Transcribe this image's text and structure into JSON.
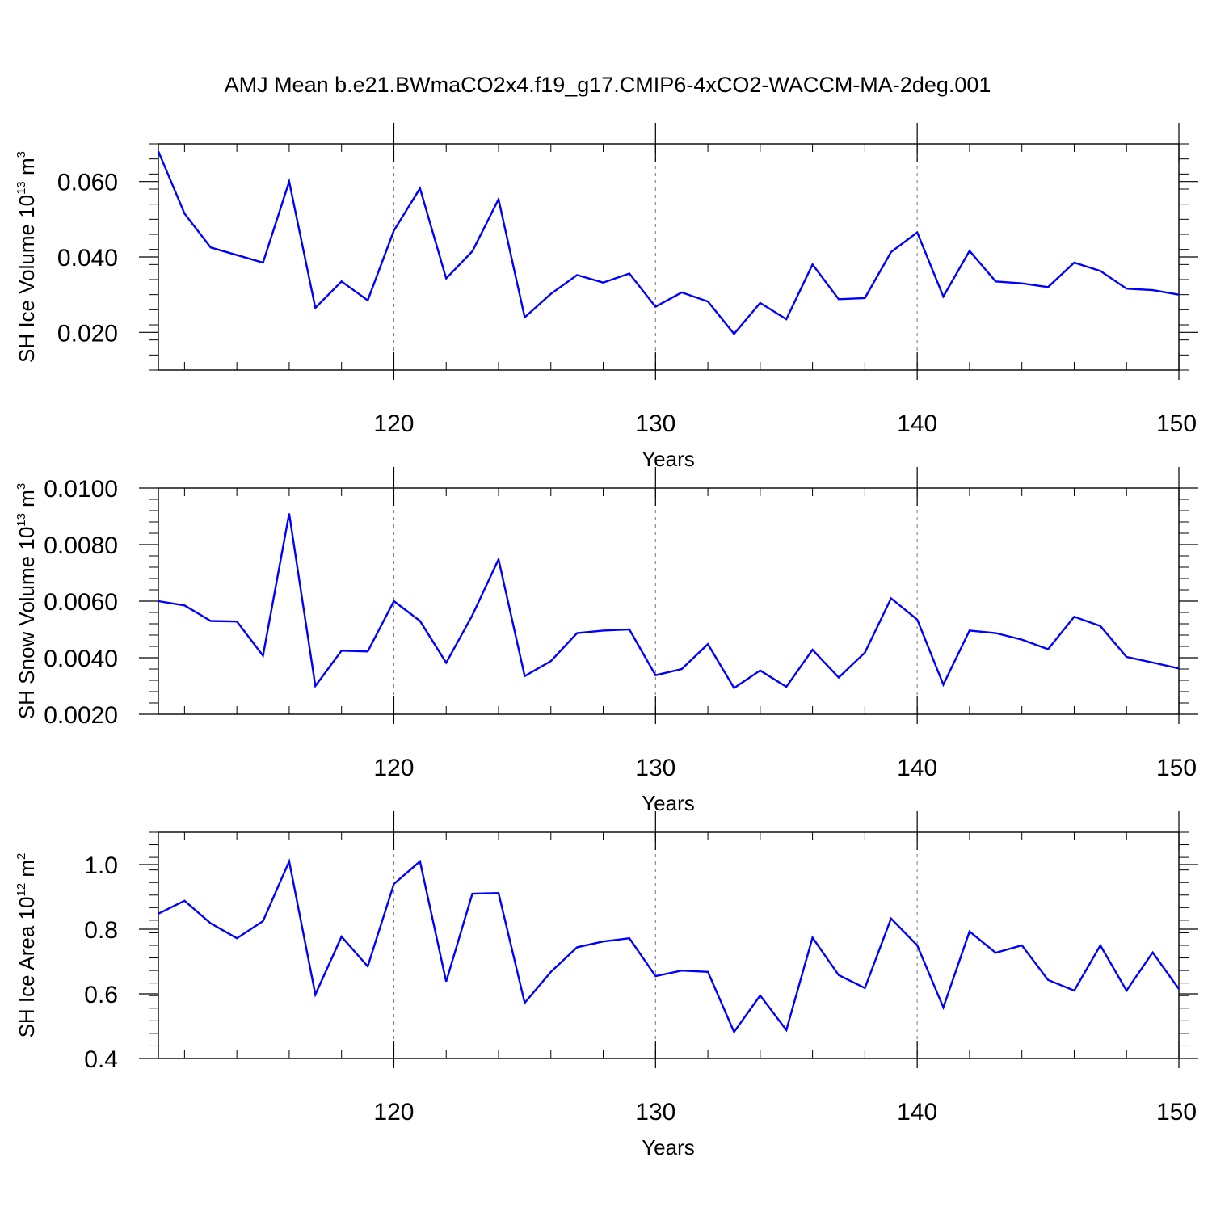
{
  "title": "AMJ Mean b.e21.BWmaCO2x4.f19_g17.CMIP6-4xCO2-WACCM-MA-2deg.001",
  "colors": {
    "line": "#0000ff",
    "axis": "#000000",
    "gridline": "#8a8a8a"
  },
  "chart_data": [
    {
      "type": "line",
      "name": "ice-volume",
      "ylabel": {
        "text": "SH Ice Volume 10",
        "sup": "13",
        "unit": " m",
        "unit_sup": "3"
      },
      "xlabel": "Years",
      "xlim": [
        111,
        150
      ],
      "ylim": [
        0.01,
        0.07
      ],
      "x_ticks": [
        120,
        130,
        140,
        150
      ],
      "x_tick_labels": [
        "120",
        "130",
        "140",
        "150"
      ],
      "x_minor_step": 2,
      "y_ticks": [
        0.02,
        0.04,
        0.06
      ],
      "y_tick_labels": [
        "0.020",
        "0.040",
        "0.060"
      ],
      "y_minor_step": 0.004,
      "vgrid": [
        120,
        130,
        140
      ],
      "x": [
        111,
        112,
        113,
        114,
        115,
        116,
        117,
        118,
        119,
        120,
        121,
        122,
        123,
        124,
        125,
        126,
        127,
        128,
        129,
        130,
        131,
        132,
        133,
        134,
        135,
        136,
        137,
        138,
        139,
        140,
        141,
        142,
        143,
        144,
        145,
        146,
        147,
        148,
        149,
        150
      ],
      "values": [
        0.068,
        0.0515,
        0.0425,
        0.0405,
        0.0385,
        0.06,
        0.0265,
        0.0335,
        0.0285,
        0.047,
        0.0582,
        0.0343,
        0.0415,
        0.0553,
        0.024,
        0.0302,
        0.0352,
        0.0332,
        0.0356,
        0.0268,
        0.0306,
        0.0282,
        0.0196,
        0.0278,
        0.0235,
        0.038,
        0.0288,
        0.0291,
        0.0413,
        0.0465,
        0.0295,
        0.0416,
        0.0335,
        0.033,
        0.032,
        0.0385,
        0.0363,
        0.0316,
        0.0312,
        0.03
      ]
    },
    {
      "type": "line",
      "name": "snow-volume",
      "ylabel": {
        "text": "SH Snow Volume 10",
        "sup": "13",
        "unit": " m",
        "unit_sup": "3"
      },
      "xlabel": "Years",
      "xlim": [
        111,
        150
      ],
      "ylim": [
        0.002,
        0.01
      ],
      "x_ticks": [
        120,
        130,
        140,
        150
      ],
      "x_tick_labels": [
        "120",
        "130",
        "140",
        "150"
      ],
      "x_minor_step": 2,
      "y_ticks": [
        0.002,
        0.004,
        0.006,
        0.008,
        0.01
      ],
      "y_tick_labels": [
        "0.0020",
        "0.0040",
        "0.0060",
        "0.0080",
        "0.0100"
      ],
      "y_minor_step": 0.0004,
      "vgrid": [
        120,
        130,
        140
      ],
      "x": [
        111,
        112,
        113,
        114,
        115,
        116,
        117,
        118,
        119,
        120,
        121,
        122,
        123,
        124,
        125,
        126,
        127,
        128,
        129,
        130,
        131,
        132,
        133,
        134,
        135,
        136,
        137,
        138,
        139,
        140,
        141,
        142,
        143,
        144,
        145,
        146,
        147,
        148,
        149,
        150
      ],
      "values": [
        0.006,
        0.00585,
        0.0053,
        0.00528,
        0.00407,
        0.0091,
        0.003,
        0.00425,
        0.00422,
        0.006,
        0.0053,
        0.00382,
        0.0055,
        0.00748,
        0.00335,
        0.00388,
        0.00487,
        0.00496,
        0.005,
        0.00338,
        0.0036,
        0.00448,
        0.00293,
        0.00355,
        0.00297,
        0.00428,
        0.0033,
        0.00418,
        0.0061,
        0.00535,
        0.00305,
        0.00496,
        0.00487,
        0.00464,
        0.0043,
        0.00545,
        0.00512,
        0.00403,
        0.00383,
        0.00362
      ]
    },
    {
      "type": "line",
      "name": "ice-area",
      "ylabel": {
        "text": "SH Ice Area 10",
        "sup": "12",
        "unit": " m",
        "unit_sup": "2"
      },
      "xlabel": "Years",
      "xlim": [
        111,
        150
      ],
      "ylim": [
        0.4,
        1.1
      ],
      "x_ticks": [
        120,
        130,
        140,
        150
      ],
      "x_tick_labels": [
        "120",
        "130",
        "140",
        "150"
      ],
      "x_minor_step": 2,
      "y_ticks": [
        0.4,
        0.6,
        0.8,
        1.0
      ],
      "y_tick_labels": [
        "0.4",
        "0.6",
        "0.8",
        "1.0"
      ],
      "y_minor_step": 0.04,
      "vgrid": [
        120,
        130,
        140
      ],
      "x": [
        111,
        112,
        113,
        114,
        115,
        116,
        117,
        118,
        119,
        120,
        121,
        122,
        123,
        124,
        125,
        126,
        127,
        128,
        129,
        130,
        131,
        132,
        133,
        134,
        135,
        136,
        137,
        138,
        139,
        140,
        141,
        142,
        143,
        144,
        145,
        146,
        147,
        148,
        149,
        150
      ],
      "values": [
        0.848,
        0.888,
        0.818,
        0.772,
        0.825,
        1.01,
        0.598,
        0.777,
        0.685,
        0.94,
        1.01,
        0.638,
        0.91,
        0.912,
        0.572,
        0.668,
        0.744,
        0.762,
        0.772,
        0.655,
        0.672,
        0.668,
        0.482,
        0.595,
        0.488,
        0.774,
        0.658,
        0.618,
        0.833,
        0.75,
        0.558,
        0.793,
        0.727,
        0.75,
        0.643,
        0.61,
        0.75,
        0.61,
        0.728,
        0.615
      ]
    }
  ]
}
